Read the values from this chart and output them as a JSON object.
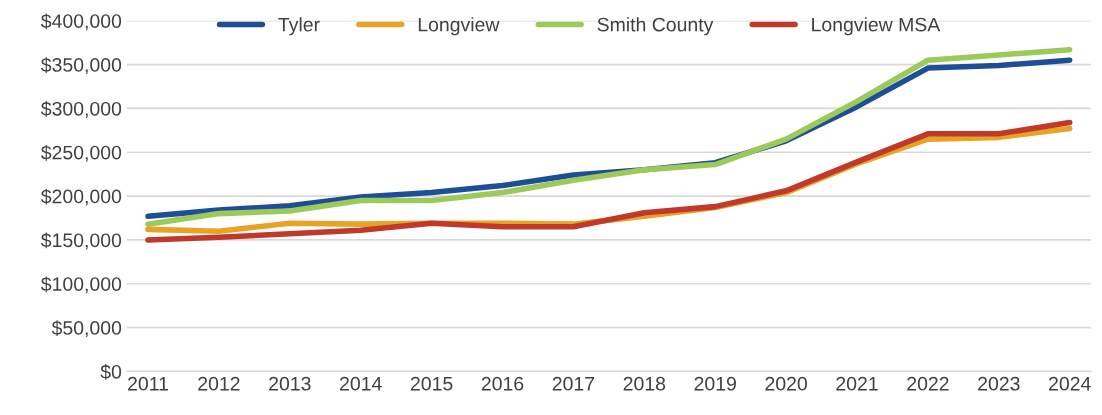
{
  "chart_data": {
    "type": "line",
    "categories": [
      "2011",
      "2012",
      "2013",
      "2014",
      "2015",
      "2016",
      "2017",
      "2018",
      "2019",
      "2020",
      "2021",
      "2022",
      "2023",
      "2024"
    ],
    "series": [
      {
        "name": "Tyler",
        "color": "#1f4e99",
        "values": [
          177000,
          184000,
          189000,
          199000,
          204000,
          212000,
          224000,
          230000,
          238000,
          263000,
          302000,
          346000,
          349000,
          355000
        ]
      },
      {
        "name": "Longview",
        "color": "#e8a325",
        "values": [
          162000,
          160000,
          169000,
          168000,
          169000,
          169000,
          168000,
          177000,
          187000,
          204000,
          237000,
          265000,
          267000,
          277000
        ]
      },
      {
        "name": "Smith County",
        "color": "#9bc95a",
        "values": [
          168000,
          180000,
          183000,
          195000,
          195000,
          204000,
          218000,
          230000,
          236000,
          265000,
          308000,
          355000,
          361000,
          367000
        ]
      },
      {
        "name": "Longview MSA",
        "color": "#c0392b",
        "values": [
          150000,
          153000,
          157000,
          161000,
          169000,
          165000,
          165000,
          181000,
          188000,
          206000,
          239000,
          271000,
          271000,
          284000
        ]
      }
    ],
    "ylim": [
      0,
      400000
    ],
    "yticks": [
      {
        "value": 0,
        "label": "$0"
      },
      {
        "value": 50000,
        "label": "$50,000"
      },
      {
        "value": 100000,
        "label": "$100,000"
      },
      {
        "value": 150000,
        "label": "$150,000"
      },
      {
        "value": 200000,
        "label": "$200,000"
      },
      {
        "value": 250000,
        "label": "$250,000"
      },
      {
        "value": 300000,
        "label": "$300,000"
      },
      {
        "value": 350000,
        "label": "$350,000"
      },
      {
        "value": 400000,
        "label": "$400,000"
      }
    ],
    "grid": "y",
    "legend": "top",
    "marker": "none",
    "line_style": "solid"
  }
}
